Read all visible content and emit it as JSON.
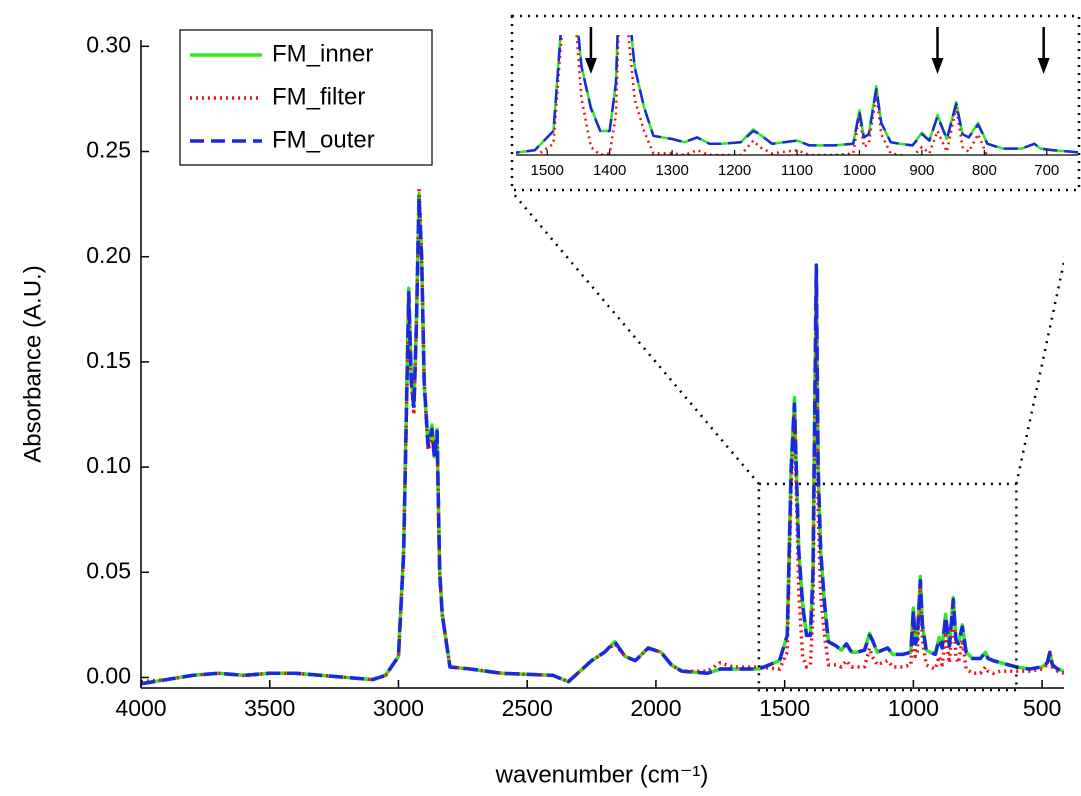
{
  "chart_data": {
    "type": "line",
    "xlabel": "wavenumber (cm⁻¹)",
    "ylabel": "Absorbance (A.U.)",
    "x": [
      4000,
      3900,
      3800,
      3700,
      3600,
      3500,
      3400,
      3300,
      3200,
      3100,
      3050,
      3000,
      2980,
      2960,
      2950,
      2940,
      2930,
      2920,
      2910,
      2900,
      2885,
      2870,
      2860,
      2850,
      2840,
      2830,
      2800,
      2720,
      2600,
      2400,
      2340,
      2250,
      2200,
      2160,
      2120,
      2080,
      2030,
      1980,
      1940,
      1900,
      1800,
      1750,
      1700,
      1600,
      1520,
      1490,
      1475,
      1462,
      1455,
      1445,
      1430,
      1415,
      1400,
      1390,
      1377,
      1370,
      1360,
      1345,
      1330,
      1300,
      1280,
      1260,
      1240,
      1220,
      1190,
      1170,
      1160,
      1140,
      1100,
      1080,
      1040,
      1010,
      1000,
      993,
      985,
      973,
      965,
      950,
      935,
      915,
      900,
      888,
      875,
      860,
      845,
      835,
      825,
      810,
      795,
      770,
      740,
      720,
      710,
      690,
      660,
      600,
      550,
      500,
      480,
      470,
      460,
      440,
      415
    ],
    "series": [
      {
        "name": "FM_inner",
        "color": "#2fe81f",
        "style": "solid",
        "values": [
          -0.003,
          -0.001,
          0.001,
          0.002,
          0.001,
          0.002,
          0.002,
          0.001,
          0.0,
          -0.001,
          0.001,
          0.01,
          0.06,
          0.185,
          0.14,
          0.13,
          0.17,
          0.23,
          0.2,
          0.14,
          0.11,
          0.12,
          0.105,
          0.118,
          0.05,
          0.03,
          0.005,
          0.004,
          0.002,
          0.001,
          -0.002,
          0.008,
          0.012,
          0.017,
          0.01,
          0.008,
          0.014,
          0.012,
          0.006,
          0.003,
          0.002,
          0.004,
          0.004,
          0.004,
          0.008,
          0.02,
          0.1,
          0.133,
          0.1,
          0.06,
          0.035,
          0.02,
          0.02,
          0.05,
          0.196,
          0.1,
          0.06,
          0.035,
          0.017,
          0.015,
          0.013,
          0.016,
          0.012,
          0.012,
          0.013,
          0.021,
          0.018,
          0.012,
          0.014,
          0.011,
          0.011,
          0.012,
          0.033,
          0.016,
          0.018,
          0.048,
          0.025,
          0.013,
          0.012,
          0.011,
          0.019,
          0.014,
          0.03,
          0.015,
          0.038,
          0.018,
          0.016,
          0.025,
          0.012,
          0.009,
          0.009,
          0.012,
          0.009,
          0.008,
          0.007,
          0.005,
          0.004,
          0.005,
          0.007,
          0.012,
          0.006,
          0.004,
          0.003
        ]
      },
      {
        "name": "FM_filter",
        "color": "#ee1111",
        "style": "dotted",
        "values": [
          -0.002,
          -0.001,
          0.001,
          0.002,
          0.001,
          0.002,
          0.002,
          0.001,
          0.0,
          -0.001,
          0.001,
          0.01,
          0.06,
          0.18,
          0.14,
          0.125,
          0.17,
          0.233,
          0.2,
          0.14,
          0.108,
          0.115,
          0.105,
          0.115,
          0.05,
          0.03,
          0.005,
          0.004,
          0.002,
          0.001,
          -0.002,
          0.008,
          0.012,
          0.016,
          0.01,
          0.008,
          0.014,
          0.012,
          0.006,
          0.003,
          0.003,
          0.007,
          0.005,
          0.005,
          0.004,
          0.012,
          0.09,
          0.125,
          0.09,
          0.04,
          0.01,
          0.005,
          0.006,
          0.03,
          0.19,
          0.08,
          0.04,
          0.02,
          0.006,
          0.006,
          0.005,
          0.008,
          0.005,
          0.005,
          0.005,
          0.014,
          0.01,
          0.006,
          0.008,
          0.005,
          0.005,
          0.006,
          0.03,
          0.01,
          0.012,
          0.043,
          0.018,
          0.006,
          0.005,
          0.004,
          0.01,
          0.006,
          0.02,
          0.007,
          0.035,
          0.01,
          0.007,
          0.018,
          0.004,
          0.002,
          0.002,
          0.005,
          0.003,
          0.002,
          0.003,
          0.003,
          0.003,
          0.004,
          0.006,
          0.012,
          0.005,
          0.003,
          0.002
        ]
      },
      {
        "name": "FM_outer",
        "color": "#1a28e0",
        "style": "dashed",
        "values": [
          -0.003,
          -0.001,
          0.001,
          0.002,
          0.001,
          0.002,
          0.002,
          0.001,
          0.0,
          -0.001,
          0.001,
          0.01,
          0.058,
          0.183,
          0.14,
          0.128,
          0.168,
          0.228,
          0.2,
          0.14,
          0.11,
          0.118,
          0.104,
          0.117,
          0.05,
          0.03,
          0.005,
          0.004,
          0.002,
          0.001,
          -0.002,
          0.008,
          0.012,
          0.017,
          0.01,
          0.008,
          0.014,
          0.012,
          0.006,
          0.003,
          0.002,
          0.004,
          0.004,
          0.004,
          0.008,
          0.02,
          0.098,
          0.13,
          0.1,
          0.06,
          0.034,
          0.02,
          0.02,
          0.05,
          0.196,
          0.1,
          0.06,
          0.035,
          0.017,
          0.015,
          0.013,
          0.016,
          0.012,
          0.012,
          0.013,
          0.02,
          0.018,
          0.012,
          0.014,
          0.011,
          0.011,
          0.012,
          0.032,
          0.016,
          0.018,
          0.046,
          0.025,
          0.013,
          0.012,
          0.011,
          0.018,
          0.014,
          0.029,
          0.015,
          0.037,
          0.018,
          0.016,
          0.024,
          0.012,
          0.009,
          0.009,
          0.012,
          0.009,
          0.008,
          0.007,
          0.005,
          0.004,
          0.005,
          0.007,
          0.012,
          0.006,
          0.004,
          0.003
        ]
      }
    ],
    "xlim": [
      4000,
      415
    ],
    "ylim": [
      -0.005,
      0.303
    ],
    "xticks": [
      4000,
      3500,
      3000,
      2500,
      2000,
      1500,
      1000,
      500
    ],
    "yticks": [
      {
        "value": 0,
        "label": "0.00"
      },
      {
        "value": 0.05,
        "label": "0.05"
      },
      {
        "value": 0.1,
        "label": "0.10"
      },
      {
        "value": 0.15,
        "label": "0.15"
      },
      {
        "value": 0.2,
        "label": "0.20"
      },
      {
        "value": 0.25,
        "label": "0.25"
      },
      {
        "value": 0.3,
        "label": "0.30"
      }
    ],
    "legend": "upper left",
    "zoom_box": {
      "xlim": [
        1600,
        600
      ],
      "ylim": [
        -0.006,
        0.092
      ]
    },
    "inset": {
      "xlim": [
        1550,
        650
      ],
      "ylim": [
        0.005,
        0.08
      ],
      "xticks": [
        1500,
        1400,
        1300,
        1200,
        1100,
        1000,
        900,
        800,
        700
      ],
      "arrows": [
        1430,
        875,
        705
      ]
    }
  }
}
